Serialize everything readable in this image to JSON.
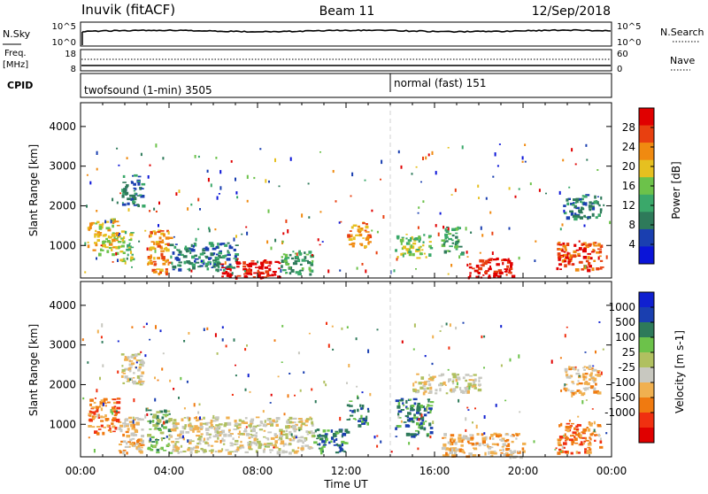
{
  "header": {
    "station": "Inuvik (fitACF)",
    "beam": "Beam 11",
    "date": "12/Sep/2018"
  },
  "nsky_panel": {
    "left_label": "N.Sky",
    "right_label": "N.Search",
    "left_ticks": [
      "10^5",
      "10^0"
    ],
    "right_ticks": [
      "10^5",
      "10^0"
    ]
  },
  "freq_panel": {
    "left_label_line1": "Freq.",
    "left_label_line2": "[MHz]",
    "right_label": "Nave",
    "left_ticks": [
      "18",
      "8"
    ],
    "right_ticks": [
      "60",
      "0"
    ]
  },
  "cpid_panel": {
    "label": "CPID",
    "segments": [
      {
        "text": "twofsound (1-min) 3505"
      },
      {
        "text": "normal (fast) 151"
      }
    ]
  },
  "colors": {
    "power": [
      "#0a14d8",
      "#1a3fb0",
      "#2e7a5a",
      "#3aa86a",
      "#6cc24a",
      "#e6c020",
      "#f08a10",
      "#e84010",
      "#e00000"
    ],
    "velocity": [
      "#e00000",
      "#f03010",
      "#f07a10",
      "#f0b050",
      "#c8c8c0",
      "#b0c060",
      "#6cc24a",
      "#2e7a5a",
      "#1a3fb0",
      "#1020d0"
    ]
  },
  "chart_data": [
    {
      "type": "heatmap",
      "name": "power",
      "ylabel": "Slant Range [km]",
      "yticks": [
        1000,
        2000,
        3000,
        4000
      ],
      "ylim": [
        180,
        4600
      ],
      "xlim": [
        0,
        24
      ],
      "colorbar": {
        "label": "Power [dB]",
        "ticks": [
          "28",
          "24",
          "20",
          "16",
          "12",
          "8",
          "4"
        ],
        "range": [
          0,
          32
        ]
      },
      "regions": [
        {
          "x0": 0.3,
          "x1": 1.7,
          "y0": 800,
          "y1": 1700,
          "level": 5
        },
        {
          "x0": 1.7,
          "x1": 2.3,
          "y0": 600,
          "y1": 1400,
          "level": 4
        },
        {
          "x0": 1.8,
          "x1": 2.8,
          "y0": 2000,
          "y1": 2800,
          "level": 2
        },
        {
          "x0": 3.0,
          "x1": 4.0,
          "y0": 300,
          "y1": 1400,
          "level": 6
        },
        {
          "x0": 4.0,
          "x1": 7.0,
          "y0": 400,
          "y1": 1100,
          "level": 2
        },
        {
          "x0": 6.3,
          "x1": 9.0,
          "y0": 200,
          "y1": 650,
          "level": 8
        },
        {
          "x0": 9.0,
          "x1": 10.5,
          "y0": 300,
          "y1": 900,
          "level": 3
        },
        {
          "x0": 12.0,
          "x1": 13.0,
          "y0": 1000,
          "y1": 1600,
          "level": 6
        },
        {
          "x0": 14.2,
          "x1": 15.8,
          "y0": 700,
          "y1": 1300,
          "level": 4
        },
        {
          "x0": 16.3,
          "x1": 17.2,
          "y0": 800,
          "y1": 1500,
          "level": 3
        },
        {
          "x0": 17.5,
          "x1": 19.5,
          "y0": 200,
          "y1": 700,
          "level": 8
        },
        {
          "x0": 21.5,
          "x1": 23.5,
          "y0": 400,
          "y1": 1100,
          "level": 7
        },
        {
          "x0": 21.8,
          "x1": 23.5,
          "y0": 1700,
          "y1": 2300,
          "level": 2
        }
      ]
    },
    {
      "type": "heatmap",
      "name": "velocity",
      "ylabel": "Slant Range [km]",
      "yticks": [
        1000,
        2000,
        3000,
        4000
      ],
      "ylim": [
        180,
        4600
      ],
      "xlim": [
        0,
        24
      ],
      "xticks": [
        "00:00",
        "04:00",
        "08:00",
        "12:00",
        "16:00",
        "20:00",
        "00:00"
      ],
      "xlabel": "Time UT",
      "colorbar": {
        "label": "Velocity [m s-1]",
        "ticks": [
          "1000",
          "500",
          "100",
          "25",
          "-25",
          "-100",
          "-500",
          "-1000"
        ]
      },
      "regions": [
        {
          "x0": 0.3,
          "x1": 1.7,
          "y0": 800,
          "y1": 1700,
          "level": 2
        },
        {
          "x0": 1.7,
          "x1": 2.8,
          "y0": 300,
          "y1": 1200,
          "level": 3
        },
        {
          "x0": 1.8,
          "x1": 2.8,
          "y0": 2000,
          "y1": 2800,
          "level": 4
        },
        {
          "x0": 3.0,
          "x1": 4.0,
          "y0": 300,
          "y1": 1400,
          "level": 6
        },
        {
          "x0": 4.0,
          "x1": 10.5,
          "y0": 300,
          "y1": 1200,
          "level": 4
        },
        {
          "x0": 10.5,
          "x1": 12.0,
          "y0": 300,
          "y1": 900,
          "level": 7
        },
        {
          "x0": 12.0,
          "x1": 13.0,
          "y0": 1000,
          "y1": 1600,
          "level": 7
        },
        {
          "x0": 14.2,
          "x1": 15.8,
          "y0": 700,
          "y1": 1700,
          "level": 7
        },
        {
          "x0": 15.0,
          "x1": 18.0,
          "y0": 1800,
          "y1": 2300,
          "level": 4
        },
        {
          "x0": 16.3,
          "x1": 20.0,
          "y0": 200,
          "y1": 800,
          "level": 3
        },
        {
          "x0": 21.5,
          "x1": 23.5,
          "y0": 300,
          "y1": 1100,
          "level": 2
        },
        {
          "x0": 21.8,
          "x1": 23.5,
          "y0": 1800,
          "y1": 2500,
          "level": 3
        }
      ]
    }
  ]
}
